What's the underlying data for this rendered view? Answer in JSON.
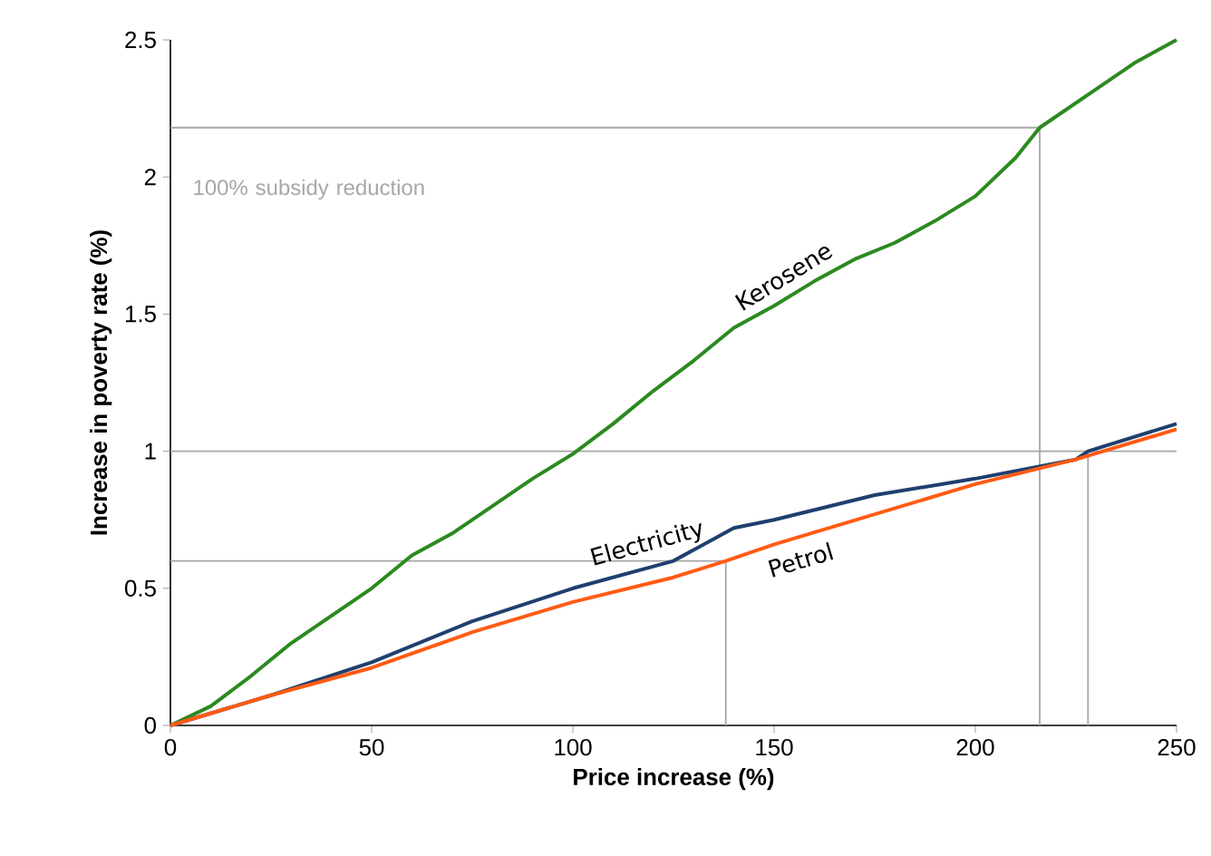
{
  "chart_data": {
    "type": "line",
    "xlabel": "Price increase (%)",
    "ylabel": "Increase in poverty rate (%)",
    "xlim": [
      0,
      250
    ],
    "ylim": [
      0,
      2.5
    ],
    "xticks": [
      0,
      50,
      100,
      150,
      200,
      250
    ],
    "yticks": [
      0,
      0.5,
      1,
      1.5,
      2,
      2.5
    ],
    "series": [
      {
        "name": "Kerosene",
        "color": "#2b8a1f",
        "x": [
          0,
          10,
          20,
          30,
          40,
          50,
          60,
          70,
          80,
          90,
          100,
          110,
          120,
          130,
          140,
          150,
          160,
          170,
          180,
          190,
          200,
          210,
          216,
          230,
          240,
          250
        ],
        "values": [
          0,
          0.07,
          0.18,
          0.3,
          0.4,
          0.5,
          0.62,
          0.7,
          0.8,
          0.9,
          0.99,
          1.1,
          1.22,
          1.33,
          1.45,
          1.53,
          1.62,
          1.7,
          1.76,
          1.84,
          1.93,
          2.07,
          2.18,
          2.32,
          2.42,
          2.5
        ]
      },
      {
        "name": "Electricity",
        "color": "#1f3f6e",
        "x": [
          0,
          25,
          50,
          75,
          100,
          125,
          140,
          150,
          175,
          200,
          225,
          228,
          250
        ],
        "values": [
          0,
          0.11,
          0.23,
          0.38,
          0.5,
          0.6,
          0.72,
          0.75,
          0.84,
          0.9,
          0.97,
          1.0,
          1.1
        ]
      },
      {
        "name": "Petrol",
        "color": "#ff5b14",
        "x": [
          0,
          25,
          50,
          75,
          100,
          125,
          138,
          150,
          175,
          200,
          225,
          250
        ],
        "values": [
          0,
          0.11,
          0.21,
          0.34,
          0.45,
          0.54,
          0.6,
          0.66,
          0.77,
          0.88,
          0.97,
          1.08
        ]
      }
    ],
    "ref_lines": [
      {
        "axis": "y",
        "value": 2.18,
        "label": "100% subsidy reduction",
        "color": "#a6a6a6"
      },
      {
        "axis": "y",
        "value": 0.6,
        "color": "#a6a6a6"
      },
      {
        "axis": "y",
        "value": 1,
        "color": "#a6a6a6"
      },
      {
        "axis": "x",
        "value": 216,
        "color": "#a6a6a6"
      },
      {
        "axis": "x",
        "value": 138,
        "color": "#a6a6a6"
      },
      {
        "axis": "x",
        "value": 228,
        "color": "#a6a6a6"
      }
    ],
    "grid": false
  }
}
